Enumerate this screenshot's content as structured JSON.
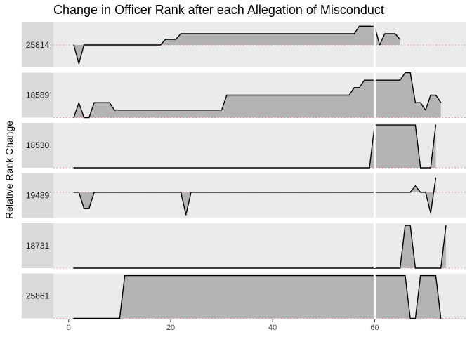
{
  "chart_data": {
    "type": "area",
    "title": "Change in Officer Rank after each Allegation of Misconduct",
    "xlabel": "",
    "ylabel": "Relative Rank Change",
    "xlim": [
      -3,
      78
    ],
    "x_ticks": [
      0,
      20,
      40,
      60
    ],
    "reference_x": 60,
    "grid": false,
    "colors": {
      "panel_bg": "#ebebeb",
      "strip_bg": "#d9d9d9",
      "area_fill": "#b3b3b3",
      "line": "#000000",
      "baseline": "#f08080",
      "reference_line": "#ffffff"
    },
    "panels": [
      {
        "label": "25814",
        "ylim": [
          -1.2,
          1.2
        ],
        "points": [
          [
            1,
            0
          ],
          [
            2,
            -1
          ],
          [
            3,
            0
          ],
          [
            18,
            0
          ],
          [
            19,
            0.3
          ],
          [
            21,
            0.3
          ],
          [
            22,
            0.6
          ],
          [
            56,
            0.6
          ],
          [
            57,
            1
          ],
          [
            60,
            1
          ],
          [
            61,
            0
          ],
          [
            62,
            0.6
          ],
          [
            64,
            0.6
          ],
          [
            65,
            0.3
          ]
        ]
      },
      {
        "label": "18589",
        "ylim": [
          0,
          6
        ],
        "points": [
          [
            1,
            0
          ],
          [
            2,
            2
          ],
          [
            3,
            0
          ],
          [
            4,
            0
          ],
          [
            5,
            2
          ],
          [
            8,
            2
          ],
          [
            9,
            1
          ],
          [
            30,
            1
          ],
          [
            31,
            3
          ],
          [
            55,
            3
          ],
          [
            56,
            4
          ],
          [
            57,
            4
          ],
          [
            58,
            5
          ],
          [
            65,
            5
          ],
          [
            66,
            6
          ],
          [
            67,
            6
          ],
          [
            68,
            2
          ],
          [
            69,
            2
          ],
          [
            70,
            1
          ],
          [
            71,
            3
          ],
          [
            72,
            3
          ],
          [
            73,
            2
          ]
        ]
      },
      {
        "label": "18530",
        "ylim": [
          0,
          1.05
        ],
        "points": [
          [
            1,
            0
          ],
          [
            59,
            0
          ],
          [
            60,
            1
          ],
          [
            68,
            1
          ],
          [
            69,
            0
          ],
          [
            71,
            0
          ],
          [
            72,
            1
          ]
        ]
      },
      {
        "label": "19489",
        "ylim": [
          -1.6,
          1.2
        ],
        "points": [
          [
            1,
            0
          ],
          [
            2,
            0
          ],
          [
            3,
            -1
          ],
          [
            4,
            -1
          ],
          [
            5,
            0
          ],
          [
            22,
            0
          ],
          [
            23,
            -1.4
          ],
          [
            24,
            0
          ],
          [
            67,
            0
          ],
          [
            68,
            0.4
          ],
          [
            69,
            0
          ],
          [
            70,
            0
          ],
          [
            71,
            -1.3
          ],
          [
            72,
            0.9
          ]
        ]
      },
      {
        "label": "18731",
        "ylim": [
          0,
          1.05
        ],
        "points": [
          [
            1,
            0
          ],
          [
            65,
            0
          ],
          [
            66,
            1
          ],
          [
            67,
            1
          ],
          [
            68,
            0
          ],
          [
            73,
            0
          ],
          [
            74,
            1
          ]
        ]
      },
      {
        "label": "25861",
        "ylim": [
          0,
          1.05
        ],
        "points": [
          [
            1,
            0
          ],
          [
            10,
            0
          ],
          [
            11,
            1
          ],
          [
            66,
            1
          ],
          [
            67,
            0
          ],
          [
            68,
            0
          ],
          [
            69,
            1
          ],
          [
            72,
            1
          ],
          [
            73,
            0
          ]
        ]
      }
    ]
  }
}
